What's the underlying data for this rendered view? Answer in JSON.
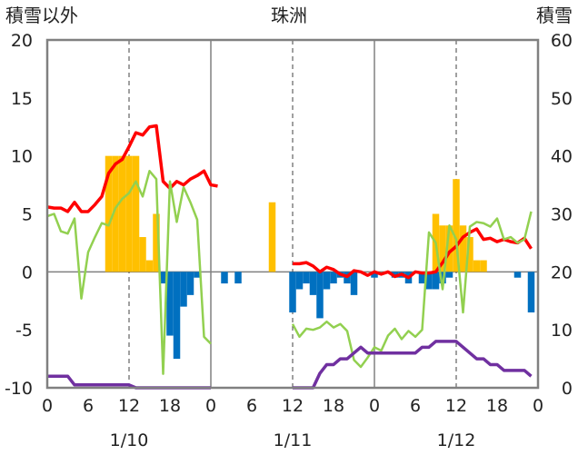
{
  "chart_data": {
    "type": "bar+line",
    "title": "珠洲",
    "left_axis_label": "積雪以外",
    "right_axis_label": "積雪",
    "left_axis": {
      "min": -10,
      "max": 20,
      "ticks": [
        -10,
        -5,
        0,
        5,
        10,
        15,
        20
      ]
    },
    "right_axis": {
      "min": 0,
      "max": 60,
      "ticks": [
        0,
        10,
        20,
        30,
        40,
        50,
        60
      ]
    },
    "x_axis": {
      "range_hours": [
        0,
        72
      ],
      "tick_labels": [
        {
          "hour": 0,
          "label": "0"
        },
        {
          "hour": 6,
          "label": "6"
        },
        {
          "hour": 12,
          "label": "12"
        },
        {
          "hour": 18,
          "label": "18"
        },
        {
          "hour": 24,
          "label": "0"
        },
        {
          "hour": 30,
          "label": "6"
        },
        {
          "hour": 36,
          "label": "12"
        },
        {
          "hour": 42,
          "label": "18"
        },
        {
          "hour": 48,
          "label": "0"
        },
        {
          "hour": 54,
          "label": "6"
        },
        {
          "hour": 60,
          "label": "12"
        },
        {
          "hour": 66,
          "label": "18"
        },
        {
          "hour": 72,
          "label": "0"
        }
      ],
      "date_labels": [
        {
          "hour": 12,
          "label": "1/10"
        },
        {
          "hour": 36,
          "label": "1/11"
        },
        {
          "hour": 60,
          "label": "1/12"
        }
      ],
      "day_separators": [
        24,
        48
      ],
      "noon_gridlines": [
        12,
        36,
        60
      ]
    },
    "colors": {
      "precip_bar": "#FFC000",
      "negative_bar": "#0070C0",
      "red_line": "#FF0000",
      "green_line": "#92D050",
      "snow_line": "#7030A0",
      "frame": "#808080"
    },
    "series": [
      {
        "kind": "bar",
        "axis": "left",
        "color": "#FFC000",
        "points": [
          [
            9,
            10
          ],
          [
            10,
            10
          ],
          [
            11,
            10
          ],
          [
            12,
            10
          ],
          [
            13,
            10
          ],
          [
            14,
            3
          ],
          [
            15,
            1
          ],
          [
            16,
            5
          ],
          [
            33,
            6
          ],
          [
            57,
            5
          ],
          [
            58,
            4
          ],
          [
            59,
            4
          ],
          [
            60,
            8
          ],
          [
            61,
            4
          ],
          [
            62,
            3
          ],
          [
            63,
            1
          ],
          [
            64,
            1
          ]
        ]
      },
      {
        "kind": "bar",
        "axis": "left",
        "color": "#0070C0",
        "points": [
          [
            17,
            -1
          ],
          [
            18,
            -5.5
          ],
          [
            19,
            -7.5
          ],
          [
            20,
            -3
          ],
          [
            21,
            -2
          ],
          [
            22,
            -0.5
          ],
          [
            26,
            -1
          ],
          [
            28,
            -1
          ],
          [
            36,
            -3.5
          ],
          [
            37,
            -1.5
          ],
          [
            38,
            -1
          ],
          [
            39,
            -2
          ],
          [
            40,
            -4
          ],
          [
            41,
            -1.5
          ],
          [
            42,
            -1
          ],
          [
            43,
            -0.5
          ],
          [
            44,
            -1
          ],
          [
            45,
            -2
          ],
          [
            48,
            -0.5
          ],
          [
            51,
            -0.5
          ],
          [
            52,
            -0.5
          ],
          [
            53,
            -1
          ],
          [
            55,
            -1
          ],
          [
            56,
            -1.5
          ],
          [
            57,
            -1.5
          ],
          [
            58,
            -1
          ],
          [
            59,
            -0.5
          ],
          [
            69,
            -0.5
          ],
          [
            71,
            -3.5
          ]
        ]
      },
      {
        "kind": "line",
        "axis": "left",
        "color": "#FF0000",
        "points": [
          [
            0,
            5.6
          ],
          [
            1,
            5.5
          ],
          [
            2,
            5.5
          ],
          [
            3,
            5.2
          ],
          [
            4,
            6
          ],
          [
            5,
            5.2
          ],
          [
            6,
            5.2
          ],
          [
            7,
            5.8
          ],
          [
            8,
            6.5
          ],
          [
            9,
            8.5
          ],
          [
            10,
            9.3
          ],
          [
            11,
            9.7
          ],
          [
            12,
            10.8
          ],
          [
            13,
            12
          ],
          [
            14,
            11.8
          ],
          [
            15,
            12.5
          ],
          [
            16,
            12.6
          ],
          [
            17,
            7.8
          ],
          [
            18,
            7.2
          ],
          [
            19,
            7.8
          ],
          [
            20,
            7.5
          ],
          [
            21,
            8
          ],
          [
            22,
            8.3
          ],
          [
            23,
            8.7
          ],
          [
            24,
            7.5
          ],
          [
            25,
            7.4
          ],
          [
            36,
            0.7
          ],
          [
            37,
            0.7
          ],
          [
            38,
            0.8
          ],
          [
            39,
            0.5
          ],
          [
            40,
            0
          ],
          [
            41,
            0.4
          ],
          [
            42,
            0.2
          ],
          [
            43,
            -0.2
          ],
          [
            44,
            -0.4
          ],
          [
            45,
            0.1
          ],
          [
            46,
            0
          ],
          [
            47,
            -0.3
          ],
          [
            48,
            0
          ],
          [
            49,
            -0.2
          ],
          [
            50,
            0
          ],
          [
            51,
            -0.4
          ],
          [
            52,
            -0.2
          ],
          [
            53,
            -0.5
          ],
          [
            54,
            0
          ],
          [
            55,
            -0.1
          ],
          [
            56,
            -0.1
          ],
          [
            57,
            0
          ],
          [
            58,
            0.8
          ],
          [
            59,
            1.7
          ],
          [
            60,
            2.2
          ],
          [
            61,
            3
          ],
          [
            62,
            3.4
          ],
          [
            63,
            3.7
          ],
          [
            64,
            2.8
          ],
          [
            65,
            2.9
          ],
          [
            66,
            2.6
          ],
          [
            67,
            2.8
          ],
          [
            68,
            2.6
          ],
          [
            69,
            2.5
          ],
          [
            70,
            2.9
          ],
          [
            71,
            2
          ]
        ]
      },
      {
        "kind": "line",
        "axis": "left",
        "color": "#92D050",
        "points": [
          [
            0,
            4.8
          ],
          [
            1,
            5
          ],
          [
            2,
            3.5
          ],
          [
            3,
            3.3
          ],
          [
            4,
            4.6
          ],
          [
            5,
            -2.3
          ],
          [
            6,
            1.7
          ],
          [
            7,
            3
          ],
          [
            8,
            4.2
          ],
          [
            9,
            4
          ],
          [
            10,
            5.5
          ],
          [
            11,
            6.3
          ],
          [
            12,
            6.8
          ],
          [
            13,
            7.8
          ],
          [
            14,
            6.5
          ],
          [
            15,
            8.7
          ],
          [
            16,
            8
          ],
          [
            17,
            -8.8
          ],
          [
            18,
            7.8
          ],
          [
            19,
            4.3
          ],
          [
            20,
            7.3
          ],
          [
            21,
            6
          ],
          [
            22,
            4.5
          ],
          [
            23,
            -5.6
          ],
          [
            24,
            -6.2
          ],
          [
            36,
            -4.5
          ],
          [
            37,
            -5.6
          ],
          [
            38,
            -4.9
          ],
          [
            39,
            -5
          ],
          [
            40,
            -4.8
          ],
          [
            41,
            -4.3
          ],
          [
            42,
            -4.8
          ],
          [
            43,
            -4.5
          ],
          [
            44,
            -5.1
          ],
          [
            45,
            -7.6
          ],
          [
            46,
            -8.2
          ],
          [
            47,
            -7.4
          ],
          [
            48,
            -6.5
          ],
          [
            49,
            -6.8
          ],
          [
            50,
            -5.5
          ],
          [
            51,
            -4.9
          ],
          [
            52,
            -5.8
          ],
          [
            53,
            -5.1
          ],
          [
            54,
            -5.6
          ],
          [
            55,
            -5
          ],
          [
            56,
            3.4
          ],
          [
            57,
            2.5
          ],
          [
            58,
            -1.5
          ],
          [
            59,
            4
          ],
          [
            60,
            2.8
          ],
          [
            61,
            -3.5
          ],
          [
            62,
            3.9
          ],
          [
            63,
            4.3
          ],
          [
            64,
            4.2
          ],
          [
            65,
            3.9
          ],
          [
            66,
            4.6
          ],
          [
            67,
            2.8
          ],
          [
            68,
            3
          ],
          [
            69,
            2.5
          ],
          [
            70,
            2.8
          ],
          [
            71,
            5.2
          ]
        ]
      },
      {
        "kind": "line",
        "axis": "right",
        "color": "#7030A0",
        "points": [
          [
            0,
            2
          ],
          [
            1,
            2
          ],
          [
            2,
            2
          ],
          [
            3,
            2
          ],
          [
            4,
            0.5
          ],
          [
            5,
            0.5
          ],
          [
            6,
            0.5
          ],
          [
            7,
            0.5
          ],
          [
            8,
            0.5
          ],
          [
            9,
            0.5
          ],
          [
            10,
            0.5
          ],
          [
            11,
            0.5
          ],
          [
            12,
            0.5
          ],
          [
            13,
            0
          ],
          [
            14,
            0
          ],
          [
            15,
            0
          ],
          [
            16,
            0
          ],
          [
            17,
            0
          ],
          [
            18,
            0
          ],
          [
            19,
            0
          ],
          [
            20,
            0
          ],
          [
            21,
            0
          ],
          [
            22,
            0
          ],
          [
            23,
            0
          ],
          [
            24,
            0
          ],
          [
            36,
            0
          ],
          [
            37,
            0
          ],
          [
            38,
            0
          ],
          [
            39,
            0
          ],
          [
            40,
            2.5
          ],
          [
            41,
            4
          ],
          [
            42,
            4
          ],
          [
            43,
            5
          ],
          [
            44,
            5
          ],
          [
            45,
            6
          ],
          [
            46,
            7
          ],
          [
            47,
            6
          ],
          [
            48,
            6
          ],
          [
            49,
            6
          ],
          [
            50,
            6
          ],
          [
            51,
            6
          ],
          [
            52,
            6
          ],
          [
            53,
            6
          ],
          [
            54,
            6
          ],
          [
            55,
            7
          ],
          [
            56,
            7
          ],
          [
            57,
            8
          ],
          [
            58,
            8
          ],
          [
            59,
            8
          ],
          [
            60,
            8
          ],
          [
            61,
            7
          ],
          [
            62,
            6
          ],
          [
            63,
            5
          ],
          [
            64,
            5
          ],
          [
            65,
            4
          ],
          [
            66,
            4
          ],
          [
            67,
            3
          ],
          [
            68,
            3
          ],
          [
            69,
            3
          ],
          [
            70,
            3
          ],
          [
            71,
            2
          ]
        ]
      }
    ]
  }
}
